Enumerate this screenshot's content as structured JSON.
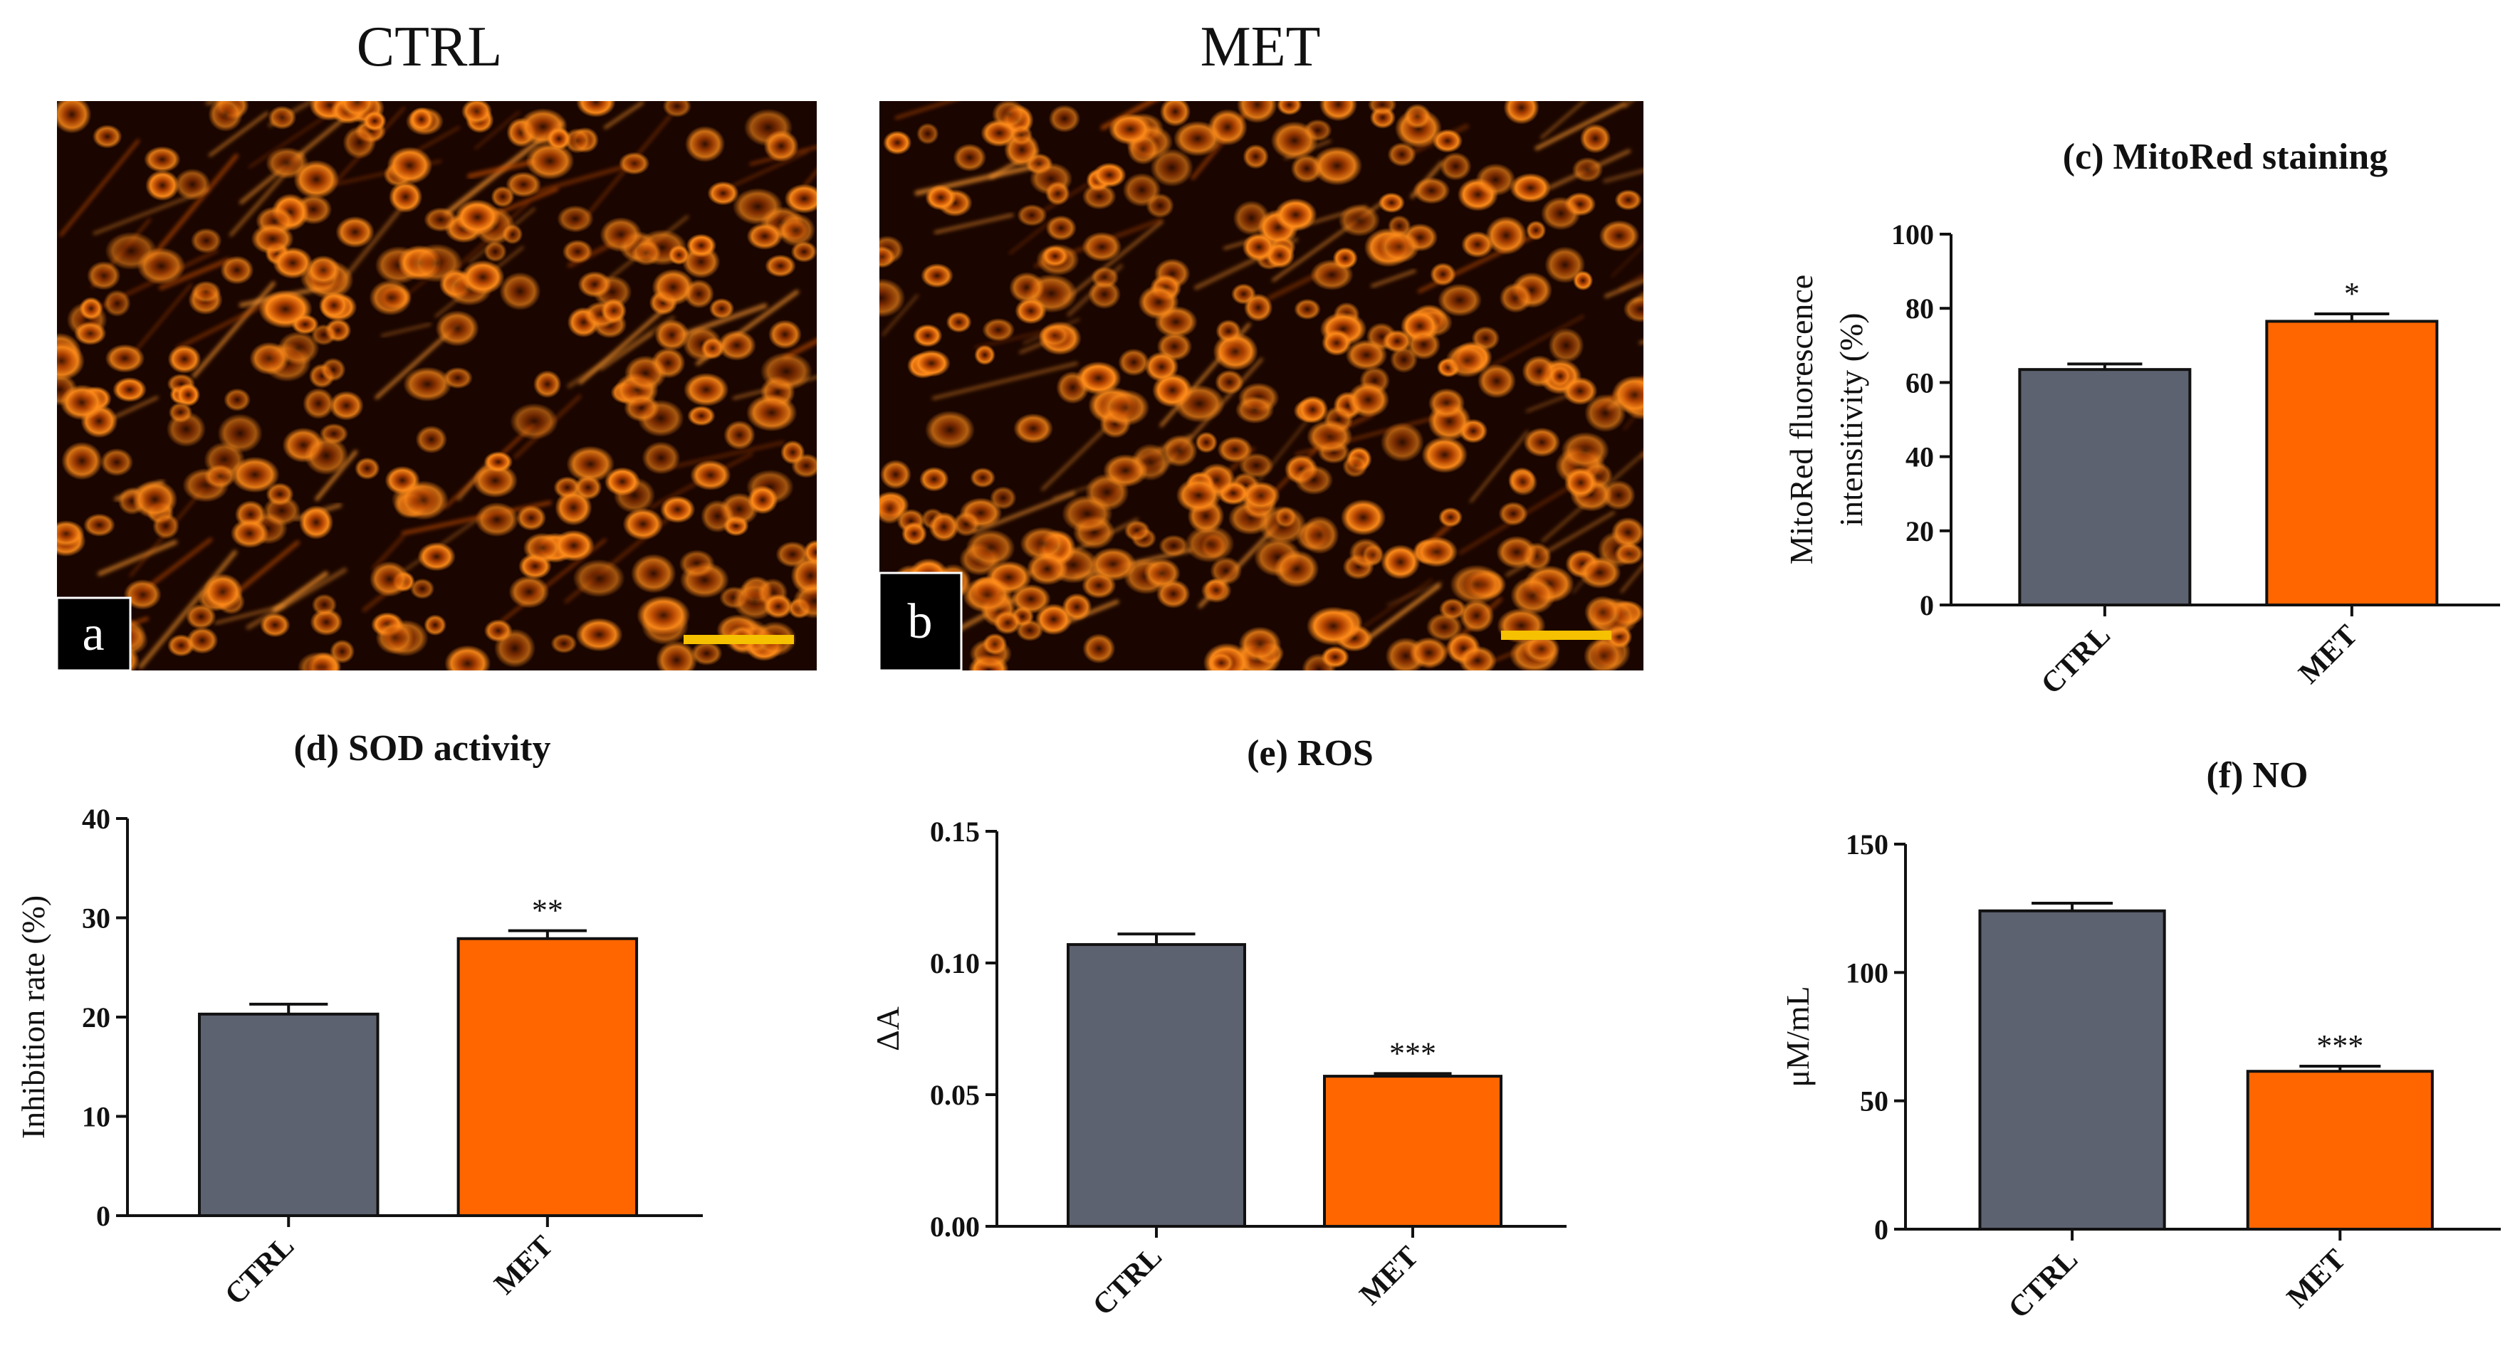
{
  "images": [
    {
      "header": "CTRL",
      "panel_label": "a"
    },
    {
      "header": "MET",
      "panel_label": "b"
    }
  ],
  "colors": {
    "ctrl_bar": "#5d6270",
    "met_bar": "#ff6600",
    "scale_bar": "#f5c100",
    "axis": "#111111"
  },
  "chart_data": [
    {
      "id": "c",
      "type": "bar",
      "title": "(c) MitoRed staining",
      "ylabel_lines": [
        "MitoRed fluorescence",
        "intensitivity (%)"
      ],
      "categories": [
        "CTRL",
        "MET"
      ],
      "values": [
        63.5,
        76.5
      ],
      "errors": [
        1.5,
        2.0
      ],
      "significance": [
        "",
        "*"
      ],
      "ylim": [
        0,
        100
      ],
      "yticks": [
        0,
        20,
        40,
        60,
        80,
        100
      ],
      "tick_labels": [
        "0",
        "20",
        "40",
        "60",
        "80",
        "100"
      ]
    },
    {
      "id": "d",
      "type": "bar",
      "title": "(d) SOD activity",
      "ylabel_lines": [
        "Inhibition rate (%)"
      ],
      "categories": [
        "CTRL",
        "MET"
      ],
      "values": [
        20.3,
        27.9
      ],
      "errors": [
        1.0,
        0.8
      ],
      "significance": [
        "",
        "**"
      ],
      "ylim": [
        0,
        40
      ],
      "yticks": [
        0,
        10,
        20,
        30,
        40
      ],
      "tick_labels": [
        "0",
        "10",
        "20",
        "30",
        "40"
      ]
    },
    {
      "id": "e",
      "type": "bar",
      "title": "(e) ROS",
      "ylabel_lines": [
        "ΔA"
      ],
      "categories": [
        "CTRL",
        "MET"
      ],
      "values": [
        0.107,
        0.057
      ],
      "errors": [
        0.004,
        0.001
      ],
      "significance": [
        "",
        "***"
      ],
      "ylim": [
        0,
        0.15
      ],
      "yticks": [
        0,
        0.05,
        0.1,
        0.15
      ],
      "tick_labels": [
        "0.00",
        "0.05",
        "0.10",
        "0.15"
      ]
    },
    {
      "id": "f",
      "type": "bar",
      "title": "(f) NO",
      "ylabel_lines": [
        "μM/mL"
      ],
      "categories": [
        "CTRL",
        "MET"
      ],
      "values": [
        124,
        61.5
      ],
      "errors": [
        3.0,
        2.0
      ],
      "significance": [
        "",
        "***"
      ],
      "ylim": [
        0,
        150
      ],
      "yticks": [
        0,
        50,
        100,
        150
      ],
      "tick_labels": [
        "0",
        "50",
        "100",
        "150"
      ]
    }
  ]
}
